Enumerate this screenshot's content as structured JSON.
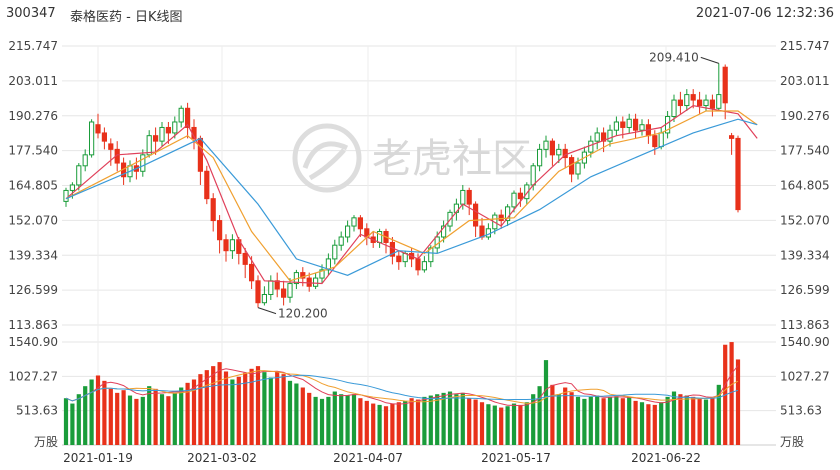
{
  "header": {
    "code": "300347",
    "name": "泰格医药 - 日K线图",
    "datetime": "2021-07-06 12:32:36"
  },
  "watermark": "老虎社区",
  "colors": {
    "up": "#1a9c3a",
    "down": "#e8311a",
    "ma5": "#e0405a",
    "ma10": "#f0a030",
    "ma20": "#3a9ad8"
  },
  "chart_data": {
    "type": "candlestick",
    "price_axis": {
      "ticks": [
        "215.747",
        "203.011",
        "190.276",
        "177.540",
        "164.805",
        "152.070",
        "139.334",
        "126.599",
        "113.863"
      ],
      "range": [
        113.863,
        215.747
      ]
    },
    "volume_axis": {
      "ticks": [
        "1540.90",
        "1027.27",
        "513.63"
      ],
      "unit": "万股",
      "max": 1540.9
    },
    "dates": [
      "2021-01-19",
      "2021-03-02",
      "2021-04-07",
      "2021-05-17",
      "2021-06-22"
    ],
    "annotations": {
      "high": "209.410",
      "low": "120.200"
    },
    "candles": [
      [
        159,
        163,
        157,
        164,
        700
      ],
      [
        163,
        165,
        160,
        166,
        620
      ],
      [
        165,
        172,
        163,
        173,
        760
      ],
      [
        172,
        176,
        170,
        178,
        880
      ],
      [
        176,
        188,
        175,
        189,
        980
      ],
      [
        187,
        184,
        182,
        191,
        1040
      ],
      [
        184,
        181,
        178,
        186,
        960
      ],
      [
        180,
        178,
        172,
        182,
        840
      ],
      [
        178,
        173,
        170,
        181,
        780
      ],
      [
        173,
        168,
        165,
        175,
        820
      ],
      [
        168,
        172,
        166,
        174,
        740
      ],
      [
        172,
        170,
        167,
        175,
        690
      ],
      [
        170,
        176,
        168,
        178,
        720
      ],
      [
        176,
        183,
        175,
        185,
        880
      ],
      [
        183,
        181,
        176,
        186,
        840
      ],
      [
        181,
        186,
        179,
        188,
        760
      ],
      [
        186,
        184,
        180,
        188,
        730
      ],
      [
        184,
        188,
        182,
        190,
        780
      ],
      [
        188,
        193,
        186,
        194,
        860
      ],
      [
        193,
        186,
        182,
        195,
        930
      ],
      [
        186,
        182,
        178,
        189,
        980
      ],
      [
        182,
        170,
        165,
        183,
        1060
      ],
      [
        170,
        160,
        158,
        172,
        1120
      ],
      [
        160,
        152,
        148,
        162,
        1180
      ],
      [
        152,
        145,
        140,
        154,
        1240
      ],
      [
        145,
        141,
        137,
        147,
        1100
      ],
      [
        141,
        145,
        138,
        147,
        980
      ],
      [
        145,
        140,
        136,
        146,
        1020
      ],
      [
        140,
        136,
        131,
        142,
        1080
      ],
      [
        136,
        130,
        127,
        139,
        1140
      ],
      [
        130,
        122,
        120.2,
        132,
        1180
      ],
      [
        122,
        125,
        121,
        128,
        1090
      ],
      [
        125,
        130,
        123,
        132,
        1010
      ],
      [
        130,
        127,
        124,
        133,
        1100
      ],
      [
        127,
        124,
        121,
        130,
        1060
      ],
      [
        124,
        129,
        122,
        131,
        960
      ],
      [
        129,
        133,
        127,
        134,
        920
      ],
      [
        133,
        131,
        128,
        135,
        860
      ],
      [
        131,
        128,
        126,
        133,
        780
      ],
      [
        128,
        131,
        127,
        133,
        720
      ],
      [
        131,
        134,
        129,
        136,
        690
      ],
      [
        134,
        138,
        132,
        140,
        720
      ],
      [
        138,
        143,
        136,
        145,
        800
      ],
      [
        143,
        146,
        141,
        148,
        760
      ],
      [
        146,
        150,
        144,
        152,
        740
      ],
      [
        150,
        153,
        148,
        154,
        760
      ],
      [
        153,
        149,
        146,
        154,
        700
      ],
      [
        149,
        146,
        143,
        151,
        660
      ],
      [
        146,
        144,
        142,
        148,
        620
      ],
      [
        144,
        148,
        142,
        149,
        600
      ],
      [
        148,
        144,
        140,
        149,
        580
      ],
      [
        144,
        139,
        136,
        146,
        620
      ],
      [
        139,
        137,
        134,
        141,
        640
      ],
      [
        137,
        140,
        135,
        141,
        660
      ],
      [
        140,
        138,
        135,
        142,
        700
      ],
      [
        138,
        134,
        132,
        140,
        680
      ],
      [
        134,
        137,
        133,
        139,
        720
      ],
      [
        137,
        142,
        135,
        143,
        740
      ],
      [
        142,
        146,
        140,
        148,
        760
      ],
      [
        146,
        150,
        144,
        152,
        780
      ],
      [
        150,
        155,
        148,
        156,
        800
      ],
      [
        155,
        158,
        152,
        160,
        760
      ],
      [
        158,
        163,
        156,
        165,
        780
      ],
      [
        163,
        158,
        154,
        164,
        700
      ],
      [
        158,
        150,
        146,
        159,
        680
      ],
      [
        150,
        146,
        145,
        153,
        640
      ],
      [
        146,
        149,
        145,
        151,
        610
      ],
      [
        149,
        154,
        147,
        155,
        590
      ],
      [
        154,
        152,
        149,
        156,
        560
      ],
      [
        152,
        157,
        150,
        158,
        580
      ],
      [
        157,
        162,
        155,
        163,
        620
      ],
      [
        162,
        160,
        157,
        164,
        600
      ],
      [
        160,
        165,
        158,
        166,
        640
      ],
      [
        165,
        172,
        163,
        173,
        760
      ],
      [
        172,
        178,
        170,
        180,
        880
      ],
      [
        178,
        181,
        175,
        183,
        1270
      ],
      [
        181,
        176,
        172,
        182,
        900
      ],
      [
        176,
        178,
        173,
        180,
        760
      ],
      [
        178,
        175,
        171,
        180,
        860
      ],
      [
        175,
        169,
        166,
        176,
        790
      ],
      [
        169,
        173,
        167,
        175,
        720
      ],
      [
        173,
        177,
        171,
        179,
        690
      ],
      [
        177,
        181,
        175,
        183,
        720
      ],
      [
        181,
        184,
        178,
        186,
        740
      ],
      [
        184,
        181,
        177,
        186,
        700
      ],
      [
        181,
        185,
        179,
        187,
        720
      ],
      [
        185,
        188,
        183,
        190,
        730
      ],
      [
        188,
        186,
        182,
        190,
        700
      ],
      [
        186,
        189,
        184,
        191,
        710
      ],
      [
        189,
        185,
        182,
        191,
        660
      ],
      [
        185,
        187,
        183,
        189,
        640
      ],
      [
        187,
        183,
        180,
        189,
        610
      ],
      [
        183,
        179,
        176,
        185,
        600
      ],
      [
        179,
        184,
        178,
        186,
        640
      ],
      [
        184,
        190,
        182,
        192,
        720
      ],
      [
        190,
        196,
        188,
        198,
        800
      ],
      [
        196,
        194,
        191,
        199,
        760
      ],
      [
        194,
        198,
        192,
        200,
        740
      ],
      [
        198,
        196,
        193,
        200,
        720
      ],
      [
        196,
        194,
        191,
        199,
        700
      ],
      [
        194,
        196,
        192,
        198,
        680
      ],
      [
        196,
        193,
        190,
        198,
        720
      ],
      [
        193,
        198,
        192,
        209.41,
        900
      ],
      [
        208,
        195,
        189,
        209,
        1500
      ],
      [
        183,
        182,
        176,
        184,
        1540
      ],
      [
        182,
        156,
        155,
        183,
        1280
      ]
    ],
    "ma": {
      "MA5": [
        [
          0,
          160
        ],
        [
          8,
          176
        ],
        [
          14,
          177
        ],
        [
          19,
          187
        ],
        [
          22,
          174
        ],
        [
          27,
          145
        ],
        [
          31,
          130
        ],
        [
          40,
          129
        ],
        [
          46,
          147
        ],
        [
          55,
          138
        ],
        [
          62,
          158
        ],
        [
          68,
          150
        ],
        [
          73,
          165
        ],
        [
          78,
          176
        ],
        [
          86,
          183
        ],
        [
          93,
          186
        ],
        [
          98,
          194
        ],
        [
          105,
          191
        ],
        [
          108,
          182
        ]
      ],
      "MA10": [
        [
          0,
          160
        ],
        [
          10,
          172
        ],
        [
          19,
          183
        ],
        [
          23,
          175
        ],
        [
          29,
          148
        ],
        [
          35,
          130
        ],
        [
          42,
          135
        ],
        [
          48,
          148
        ],
        [
          56,
          140
        ],
        [
          63,
          152
        ],
        [
          70,
          153
        ],
        [
          77,
          170
        ],
        [
          85,
          180
        ],
        [
          93,
          184
        ],
        [
          100,
          192
        ],
        [
          105,
          192
        ],
        [
          108,
          187
        ]
      ],
      "MA20": [
        [
          0,
          160
        ],
        [
          12,
          172
        ],
        [
          21,
          182
        ],
        [
          30,
          158
        ],
        [
          36,
          138
        ],
        [
          44,
          132
        ],
        [
          52,
          141
        ],
        [
          58,
          140
        ],
        [
          66,
          147
        ],
        [
          74,
          156
        ],
        [
          82,
          168
        ],
        [
          90,
          176
        ],
        [
          98,
          184
        ],
        [
          105,
          189
        ],
        [
          108,
          187
        ]
      ]
    }
  }
}
